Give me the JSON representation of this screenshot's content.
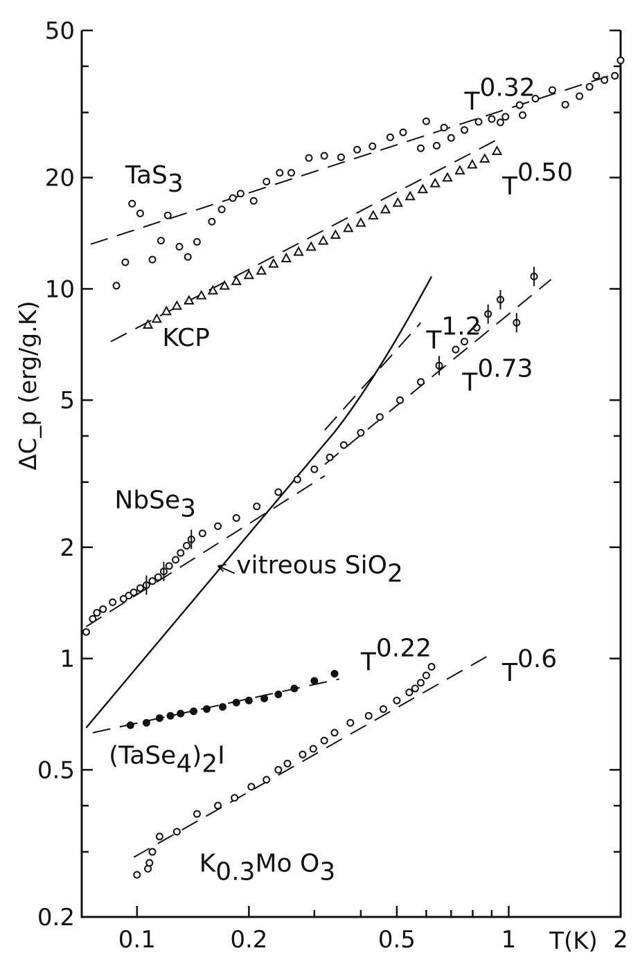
{
  "chart_data": {
    "type": "scatter",
    "xlabel": "T(K)",
    "ylabel": "ΔC_p (erg/g.K)",
    "xscale": "log",
    "yscale": "log",
    "xlim": [
      0.071,
      2.0
    ],
    "ylim": [
      0.2,
      50
    ],
    "x_ticks": [
      {
        "value": 0.1,
        "label": "0.1"
      },
      {
        "value": 0.2,
        "label": "0.2"
      },
      {
        "value": 0.5,
        "label": "0.5"
      },
      {
        "value": 1,
        "label": "1"
      },
      {
        "value": 2,
        "label": "2"
      }
    ],
    "y_ticks": [
      {
        "value": 0.2,
        "label": "0.2"
      },
      {
        "value": 0.5,
        "label": "0.5"
      },
      {
        "value": 1,
        "label": "1"
      },
      {
        "value": 2,
        "label": "2"
      },
      {
        "value": 5,
        "label": "5"
      },
      {
        "value": 10,
        "label": "10"
      },
      {
        "value": 20,
        "label": "20"
      },
      {
        "value": 50,
        "label": "50"
      }
    ],
    "x_minor_ticks": [
      0.3,
      0.4,
      0.6,
      0.7,
      0.8,
      0.9
    ],
    "y_minor_ticks": [
      0.3,
      0.4,
      3,
      4,
      30,
      40
    ],
    "series": [
      {
        "id": "tas3",
        "marker": "open-circle",
        "x": [
          0.088,
          0.093,
          0.097,
          0.102,
          0.11,
          0.116,
          0.121,
          0.13,
          0.137,
          0.145,
          0.159,
          0.169,
          0.181,
          0.19,
          0.206,
          0.223,
          0.242,
          0.26,
          0.29,
          0.319,
          0.354,
          0.391,
          0.43,
          0.48,
          0.52,
          0.58,
          0.64,
          0.7,
          0.76,
          0.83,
          0.9,
          0.98,
          1.07,
          1.18,
          1.31,
          1.42,
          1.55,
          1.65,
          1.72,
          1.81,
          1.93,
          2.0,
          1.09,
          0.95,
          0.67,
          0.6
        ],
        "y": [
          10.2,
          11.8,
          17,
          16,
          12,
          13.5,
          15.8,
          13,
          12.2,
          13.4,
          15.2,
          16.4,
          17.6,
          18.1,
          17.3,
          19.5,
          20.6,
          20.6,
          22.6,
          22.9,
          22.7,
          23.8,
          24.3,
          25.7,
          26.5,
          24,
          24.4,
          25.6,
          26.9,
          28.3,
          28.8,
          29.2,
          31.4,
          32.7,
          34.5,
          31.5,
          33.2,
          35.2,
          37.7,
          36.7,
          37.7,
          41.5,
          29.5,
          28.2,
          27.3,
          28.4
        ]
      },
      {
        "id": "kcp",
        "marker": "open-triangle",
        "x": [
          0.107,
          0.113,
          0.12,
          0.128,
          0.138,
          0.149,
          0.16,
          0.172,
          0.185,
          0.2,
          0.216,
          0.233,
          0.252,
          0.272,
          0.294,
          0.317,
          0.342,
          0.37,
          0.4,
          0.432,
          0.466,
          0.503,
          0.543,
          0.587,
          0.634,
          0.684,
          0.739,
          0.798,
          0.862,
          0.93
        ],
        "y": [
          8.0,
          8.3,
          8.7,
          9.0,
          9.3,
          9.6,
          9.9,
          10.2,
          10.5,
          10.9,
          11.2,
          11.7,
          12.1,
          12.6,
          13.0,
          13.5,
          14.0,
          14.6,
          15.1,
          15.8,
          16.4,
          17.1,
          17.8,
          18.6,
          19.3,
          20.0,
          20.9,
          21.7,
          22.5,
          23.6
        ]
      },
      {
        "id": "nbse3",
        "marker": "open-circle",
        "x": [
          0.073,
          0.076,
          0.078,
          0.081,
          0.086,
          0.092,
          0.095,
          0.098,
          0.102,
          0.106,
          0.11,
          0.114,
          0.118,
          0.122,
          0.127,
          0.131,
          0.136,
          0.14,
          0.15,
          0.165,
          0.185,
          0.21,
          0.24,
          0.27,
          0.3,
          0.33,
          0.36,
          0.4,
          0.45,
          0.51,
          0.58,
          0.65,
          0.72,
          0.76,
          0.82,
          0.88,
          0.95,
          1.05,
          1.17
        ],
        "y": [
          1.18,
          1.28,
          1.33,
          1.36,
          1.42,
          1.45,
          1.48,
          1.51,
          1.55,
          1.58,
          1.62,
          1.66,
          1.72,
          1.78,
          1.85,
          1.93,
          2.02,
          2.1,
          2.18,
          2.28,
          2.4,
          2.58,
          2.82,
          3.05,
          3.25,
          3.5,
          3.78,
          4.08,
          4.5,
          5.0,
          5.6,
          6.2,
          6.85,
          7.2,
          7.85,
          8.55,
          9.35,
          8.1,
          10.8
        ]
      },
      {
        "id": "taSe4",
        "marker": "filled-circle",
        "x": [
          0.096,
          0.106,
          0.115,
          0.123,
          0.131,
          0.142,
          0.154,
          0.17,
          0.185,
          0.2,
          0.22,
          0.24,
          0.265,
          0.3,
          0.34
        ],
        "y": [
          0.66,
          0.67,
          0.69,
          0.7,
          0.71,
          0.72,
          0.73,
          0.74,
          0.76,
          0.77,
          0.78,
          0.8,
          0.83,
          0.87,
          0.91
        ]
      },
      {
        "id": "k03moo3",
        "marker": "open-circle",
        "x": [
          0.1,
          0.107,
          0.108,
          0.11,
          0.115,
          0.128,
          0.145,
          0.165,
          0.183,
          0.203,
          0.223,
          0.24,
          0.254,
          0.279,
          0.298,
          0.319,
          0.34,
          0.375,
          0.42,
          0.46,
          0.5,
          0.54,
          0.56,
          0.58,
          0.6,
          0.62
        ],
        "y": [
          0.26,
          0.27,
          0.28,
          0.3,
          0.33,
          0.34,
          0.38,
          0.4,
          0.42,
          0.45,
          0.47,
          0.5,
          0.52,
          0.55,
          0.57,
          0.6,
          0.63,
          0.67,
          0.7,
          0.73,
          0.77,
          0.81,
          0.83,
          0.86,
          0.9,
          0.95
        ]
      }
    ],
    "fits": [
      {
        "id": "fit-tas3",
        "style": "dashed",
        "exponent_label": "0.32",
        "x": [
          0.075,
          1.85
        ],
        "y": [
          13.2,
          37.6
        ]
      },
      {
        "id": "fit-kcp",
        "style": "dashed",
        "exponent_label": "0.50",
        "x": [
          0.085,
          0.95
        ],
        "y": [
          7.2,
          25.6
        ]
      },
      {
        "id": "fit-nbse3-low",
        "style": "dashed",
        "exponent_label": "",
        "x": [
          0.073,
          0.32
        ],
        "y": [
          1.22,
          3.12
        ]
      },
      {
        "id": "fit-nbse3-073",
        "style": "dashed",
        "exponent_label": "0.73",
        "x": [
          0.32,
          1.3
        ],
        "y": [
          3.35,
          10.6
        ]
      },
      {
        "id": "fit-nbse3-12",
        "style": "dashed",
        "exponent_label": "1.2",
        "x": [
          0.32,
          0.58
        ],
        "y": [
          4.15,
          8.1
        ]
      },
      {
        "id": "fit-taSe4",
        "style": "dashed",
        "exponent_label": "0.22",
        "x": [
          0.076,
          0.35
        ],
        "y": [
          0.63,
          0.88
        ]
      },
      {
        "id": "fit-k03moo3",
        "style": "dashed",
        "exponent_label": "0.6",
        "x": [
          0.098,
          0.9
        ],
        "y": [
          0.29,
          1.03
        ]
      },
      {
        "id": "vitreous-sio2",
        "style": "solid",
        "exponent_label": "",
        "x": [
          0.073,
          0.62
        ],
        "y": [
          0.65,
          10.8
        ],
        "knee": [
          0.34,
          4.1
        ]
      }
    ],
    "annotations": [
      {
        "id": "lbl-tas3",
        "text": "TaS",
        "sub": "3"
      },
      {
        "id": "lbl-kcp",
        "text": "KCP",
        "sub": ""
      },
      {
        "id": "lbl-nbse3",
        "text": "NbSe",
        "sub": "3"
      },
      {
        "id": "lbl-sio2",
        "text": "vitreous SiO",
        "sub": "2"
      },
      {
        "id": "lbl-taSe4",
        "text": "(TaSe",
        "sub": "4",
        "tail": ")",
        "sub2": "2",
        "tail2": "I"
      },
      {
        "id": "lbl-k03moo3",
        "text": "K",
        "sub": "0.3",
        "mid": "Mo O",
        "sub2": "3"
      },
      {
        "id": "lbl-t032",
        "text": "T",
        "sup": "0.32"
      },
      {
        "id": "lbl-t050",
        "text": "T",
        "sup": "0.50"
      },
      {
        "id": "lbl-t12",
        "text": "T",
        "sup": "1.2"
      },
      {
        "id": "lbl-t073",
        "text": "T",
        "sup": "0.73"
      },
      {
        "id": "lbl-t022",
        "text": "T",
        "sup": "0.22"
      },
      {
        "id": "lbl-t06",
        "text": "T",
        "sup": "0.6"
      }
    ],
    "grid": false,
    "legend": "none"
  }
}
